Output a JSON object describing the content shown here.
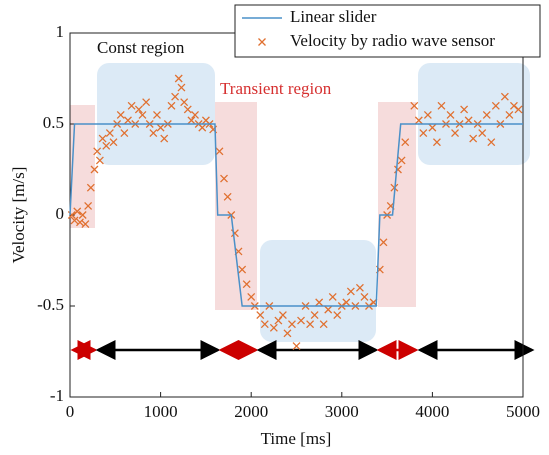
{
  "chart_data": {
    "type": "line",
    "x_label": "Time [ms]",
    "y_label": "Velocity [m/s]",
    "xlim": [
      0,
      5000
    ],
    "xticks": [
      0,
      1000,
      2000,
      3000,
      4000,
      5000
    ],
    "ylim": [
      -1,
      1
    ],
    "yticks": [
      -1,
      -0.5,
      0,
      0.5,
      1
    ],
    "annotations": [
      "Const region",
      "Transient region"
    ],
    "series": [
      {
        "name": "Linear slider",
        "type": "line",
        "color": "#4a90c8",
        "x": [
          0,
          50,
          1600,
          1630,
          1780,
          1900,
          3380,
          3420,
          3560,
          3650,
          5000
        ],
        "values": [
          0,
          0.5,
          0.5,
          0,
          0,
          -0.5,
          -0.5,
          0,
          0,
          0.5,
          0.5
        ]
      },
      {
        "name": "Velocity by radio wave sensor",
        "type": "scatter",
        "color": "#e07030",
        "x": [
          20,
          50,
          80,
          110,
          140,
          170,
          200,
          230,
          270,
          300,
          330,
          360,
          400,
          440,
          480,
          520,
          560,
          600,
          640,
          680,
          720,
          760,
          800,
          840,
          880,
          920,
          960,
          1000,
          1040,
          1080,
          1120,
          1160,
          1200,
          1230,
          1260,
          1300,
          1340,
          1380,
          1420,
          1460,
          1500,
          1540,
          1580,
          1650,
          1700,
          1740,
          1780,
          1820,
          1860,
          1900,
          1950,
          2000,
          2040,
          2100,
          2150,
          2200,
          2250,
          2300,
          2350,
          2400,
          2450,
          2500,
          2550,
          2600,
          2650,
          2700,
          2750,
          2800,
          2850,
          2900,
          2950,
          3000,
          3050,
          3100,
          3150,
          3200,
          3250,
          3300,
          3350,
          3420,
          3460,
          3500,
          3540,
          3580,
          3620,
          3660,
          3700,
          3800,
          3850,
          3900,
          3950,
          4000,
          4050,
          4100,
          4150,
          4200,
          4250,
          4300,
          4350,
          4400,
          4450,
          4500,
          4550,
          4600,
          4650,
          4700,
          4750,
          4800,
          4850,
          4900,
          4950
        ],
        "values": [
          0.0,
          -0.03,
          0.02,
          -0.04,
          0.0,
          -0.05,
          0.05,
          0.15,
          0.25,
          0.35,
          0.3,
          0.42,
          0.38,
          0.45,
          0.4,
          0.5,
          0.55,
          0.45,
          0.52,
          0.6,
          0.5,
          0.58,
          0.55,
          0.62,
          0.5,
          0.45,
          0.55,
          0.48,
          0.42,
          0.5,
          0.6,
          0.65,
          0.75,
          0.7,
          0.62,
          0.58,
          0.52,
          0.55,
          0.5,
          0.48,
          0.52,
          0.5,
          0.47,
          0.35,
          0.2,
          0.1,
          0.0,
          -0.1,
          -0.2,
          -0.3,
          -0.38,
          -0.45,
          -0.5,
          -0.55,
          -0.6,
          -0.5,
          -0.62,
          -0.58,
          -0.55,
          -0.65,
          -0.6,
          -0.72,
          -0.58,
          -0.5,
          -0.6,
          -0.55,
          -0.48,
          -0.6,
          -0.52,
          -0.45,
          -0.55,
          -0.5,
          -0.48,
          -0.42,
          -0.5,
          -0.4,
          -0.45,
          -0.5,
          -0.48,
          -0.3,
          -0.15,
          0.0,
          0.05,
          0.15,
          0.25,
          0.3,
          0.4,
          0.6,
          0.52,
          0.45,
          0.55,
          0.48,
          0.4,
          0.6,
          0.5,
          0.55,
          0.45,
          0.5,
          0.58,
          0.52,
          0.42,
          0.5,
          0.45,
          0.55,
          0.4,
          0.6,
          0.5,
          0.65,
          0.55,
          0.6,
          0.58
        ]
      }
    ]
  }
}
